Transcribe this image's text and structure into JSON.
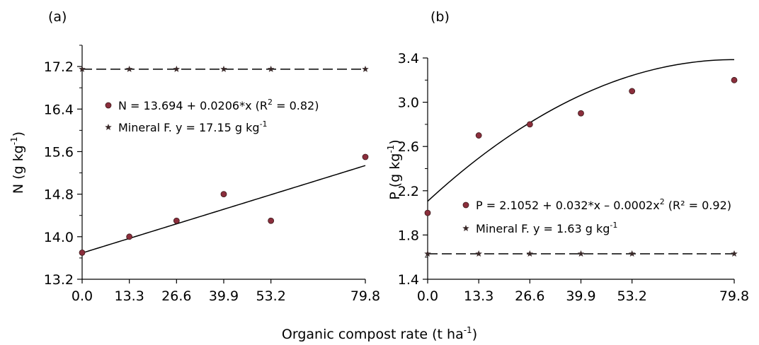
{
  "figure": {
    "x_axis_label_main": "Organic compost rate (t ha",
    "x_axis_label_sup": "-1",
    "x_axis_label_end": ")"
  },
  "chart_data": [
    {
      "type": "scatter",
      "panel_label": "(a)",
      "ylabel_main": "N (g kg",
      "ylabel_sup": "-1",
      "ylabel_end": ")",
      "xlim": [
        0,
        79.8
      ],
      "ylim": [
        13.2,
        17.6
      ],
      "x_ticks": [
        "0.0",
        "13.3",
        "26.6",
        "39.9",
        "53.2",
        "79.8"
      ],
      "x_tick_values": [
        0,
        13.3,
        26.6,
        39.9,
        53.2,
        79.8
      ],
      "y_ticks": [
        "13.2",
        "14.0",
        "14.8",
        "15.6",
        "16.4",
        "17.2"
      ],
      "y_tick_values": [
        13.2,
        14.0,
        14.8,
        15.6,
        16.4,
        17.2
      ],
      "series": [
        {
          "name": "N",
          "marker": "circle",
          "color": "#8B2E3C",
          "x": [
            0,
            13.3,
            26.6,
            39.9,
            53.2,
            79.8
          ],
          "y": [
            13.7,
            14.0,
            14.3,
            14.8,
            14.3,
            15.5
          ],
          "fit": {
            "kind": "linear",
            "a": 13.694,
            "b": 0.0206
          },
          "legend_main": "N = 13.694 + 0.0206*x (R",
          "legend_sup": "2",
          "legend_end": " = 0.82)"
        },
        {
          "name": "Mineral F.",
          "marker": "star",
          "color": "#3a2a2a",
          "x": [
            0,
            13.3,
            26.6,
            39.9,
            53.2,
            79.8
          ],
          "y": [
            17.15,
            17.15,
            17.15,
            17.15,
            17.15,
            17.15
          ],
          "fit": {
            "kind": "constant",
            "a": 17.15
          },
          "legend_main": "Mineral F. y = 17.15 g kg",
          "legend_sup": "-1",
          "legend_end": ""
        }
      ]
    },
    {
      "type": "scatter",
      "panel_label": "(b)",
      "ylabel_main": "P (g kg",
      "ylabel_sup": "-1",
      "ylabel_end": ")",
      "xlim": [
        0,
        79.8
      ],
      "ylim": [
        1.4,
        3.4
      ],
      "x_ticks": [
        "0.0",
        "13.3",
        "26.6",
        "39.9",
        "53.2",
        "79.8"
      ],
      "x_tick_values": [
        0,
        13.3,
        26.6,
        39.9,
        53.2,
        79.8
      ],
      "y_ticks": [
        "1.4",
        "1.8",
        "2.2",
        "2.6",
        "3.0",
        "3.4"
      ],
      "y_tick_values": [
        1.4,
        1.8,
        2.2,
        2.6,
        3.0,
        3.4
      ],
      "series": [
        {
          "name": "P",
          "marker": "circle",
          "color": "#8B2E3C",
          "x": [
            0,
            13.3,
            26.6,
            39.9,
            53.2,
            79.8
          ],
          "y": [
            2.0,
            2.7,
            2.8,
            2.9,
            3.1,
            3.2
          ],
          "fit": {
            "kind": "quadratic",
            "a": 2.1052,
            "b": 0.032,
            "c": -0.0002
          },
          "legend_main": "P = 2.1052 + 0.032*x – 0.0002x",
          "legend_sup": "2",
          "legend_end": "  (R² = 0.92)"
        },
        {
          "name": "Mineral F.",
          "marker": "star",
          "color": "#3a2a2a",
          "x": [
            0,
            13.3,
            26.6,
            39.9,
            53.2,
            79.8
          ],
          "y": [
            1.63,
            1.63,
            1.63,
            1.63,
            1.63,
            1.63
          ],
          "fit": {
            "kind": "constant",
            "a": 1.63
          },
          "legend_main": "Mineral F. y = 1.63 g kg",
          "legend_sup": "-1",
          "legend_end": ""
        }
      ]
    }
  ]
}
